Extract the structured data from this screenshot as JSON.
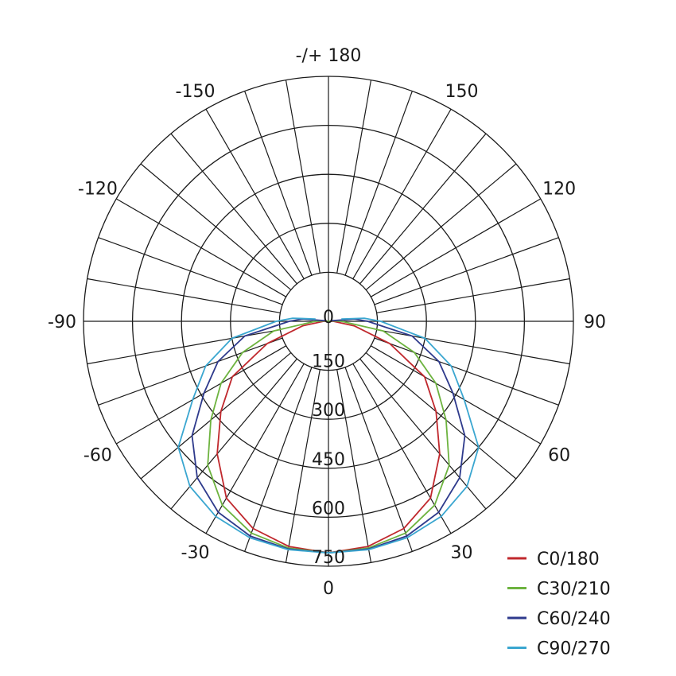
{
  "chart_data": {
    "type": "polar-line",
    "title": "",
    "radial_axis": {
      "min": 0,
      "max": 750,
      "ticks": [
        0,
        150,
        300,
        450,
        600,
        750
      ]
    },
    "angular_axis": {
      "step_grid_deg": 10,
      "labels": [
        {
          "angle": 0,
          "text": "0"
        },
        {
          "angle": 30,
          "text": "30"
        },
        {
          "angle": 60,
          "text": "60"
        },
        {
          "angle": 90,
          "text": "90"
        },
        {
          "angle": 120,
          "text": "120"
        },
        {
          "angle": 150,
          "text": "150"
        },
        {
          "angle": 180,
          "text": "-/+ 180"
        },
        {
          "angle": -150,
          "text": "-150"
        },
        {
          "angle": -120,
          "text": "-120"
        },
        {
          "angle": -90,
          "text": "-90"
        },
        {
          "angle": -60,
          "text": "-60"
        },
        {
          "angle": -30,
          "text": "-30"
        }
      ]
    },
    "grid": true,
    "legend": "bottom-right",
    "gamma": [
      0,
      10,
      20,
      30,
      40,
      50,
      60,
      70,
      80,
      90,
      95,
      100
    ],
    "series": [
      {
        "name": "C0/180",
        "color": "#c0282d",
        "values": [
          709,
          700,
          675,
          625,
          530,
          430,
          340,
          200,
          80,
          15,
          5,
          0
        ]
      },
      {
        "name": "C30/210",
        "color": "#6db33f",
        "values": [
          709,
          705,
          690,
          650,
          575,
          470,
          380,
          280,
          170,
          40,
          15,
          0
        ]
      },
      {
        "name": "C60/240",
        "color": "#2e3a8c",
        "values": [
          709,
          708,
          700,
          675,
          625,
          545,
          440,
          360,
          260,
          120,
          80,
          10
        ]
      },
      {
        "name": "C90/270",
        "color": "#3aa6d0",
        "values": [
          709,
          710,
          705,
          690,
          660,
          600,
          480,
          400,
          300,
          160,
          110,
          40
        ]
      }
    ]
  }
}
